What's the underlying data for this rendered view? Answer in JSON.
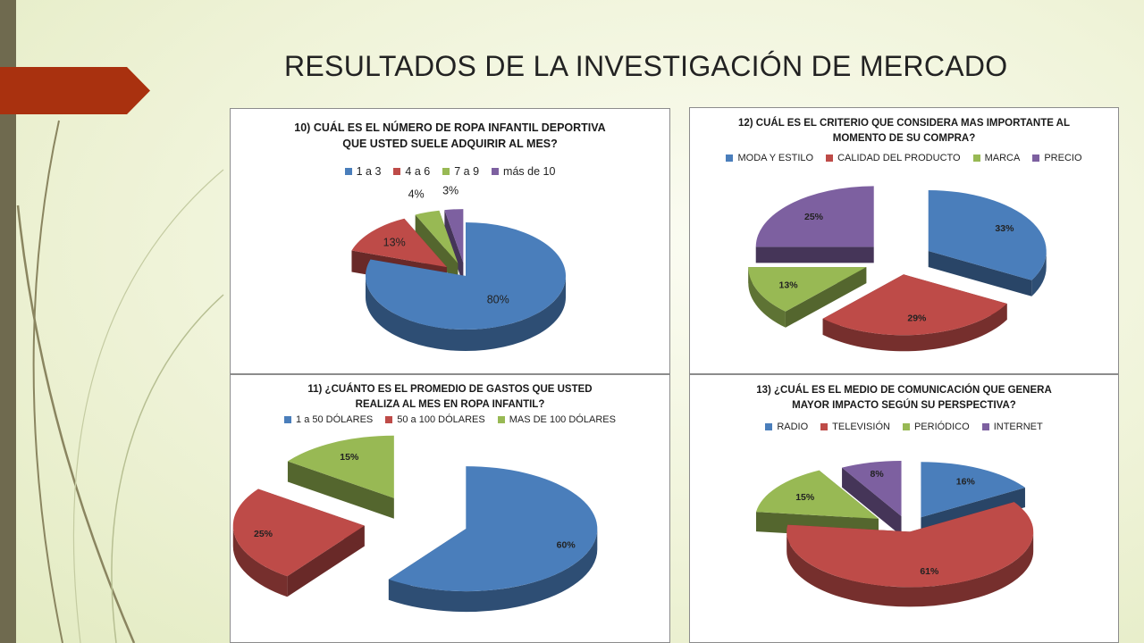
{
  "slide": {
    "title": "RESULTADOS DE LA INVESTIGACIÓN DE MERCADO"
  },
  "colors": {
    "blue": "#4a7ebb",
    "red": "#be4b48",
    "green": "#98b954",
    "purple": "#7d60a0",
    "accent": "#a9310f",
    "sidebar": "#6f6a4f"
  },
  "chart_data": [
    {
      "id": "c10",
      "type": "pie",
      "style": "3d-exploded",
      "title": "10) CUÁL ES EL NÚMERO DE ROPA INFANTIL DEPORTIVA QUE USTED SUELE ADQUIRIR AL MES?",
      "title_lines": [
        "10) CUÁL ES EL NÚMERO DE ROPA INFANTIL DEPORTIVA",
        "QUE USTED SUELE ADQUIRIR AL MES?"
      ],
      "legend": "top",
      "categories": [
        "1 a 3",
        "4 a 6",
        "7 a 9",
        "más de 10"
      ],
      "values": [
        80,
        13,
        4,
        3
      ],
      "labels": [
        "80%",
        "13%",
        "4%",
        "3%"
      ],
      "colors": [
        "#4a7ebb",
        "#be4b48",
        "#98b954",
        "#7d60a0"
      ]
    },
    {
      "id": "c11",
      "type": "pie",
      "style": "3d-exploded",
      "title": "11) ¿CUÁNTO ES EL PROMEDIO DE GASTOS QUE USTED REALIZA AL MES EN ROPA INFANTIL?",
      "title_lines": [
        "11) ¿CUÁNTO ES EL PROMEDIO DE GASTOS QUE USTED",
        "REALIZA AL MES EN ROPA INFANTIL?"
      ],
      "legend": "top",
      "categories": [
        "1 a 50 DÓLARES",
        "50 a 100 DÓLARES",
        "MAS DE 100 DÓLARES"
      ],
      "values": [
        60,
        25,
        15
      ],
      "labels": [
        "60%",
        "25%",
        "15%"
      ],
      "colors": [
        "#4a7ebb",
        "#be4b48",
        "#98b954"
      ]
    },
    {
      "id": "c12",
      "type": "pie",
      "style": "3d-exploded",
      "title": "12) CUÁL ES EL CRITERIO QUE CONSIDERA MAS IMPORTANTE AL MOMENTO DE SU COMPRA?",
      "title_lines": [
        "12) CUÁL ES EL CRITERIO QUE CONSIDERA MAS IMPORTANTE AL",
        "MOMENTO DE SU COMPRA?"
      ],
      "legend": "top",
      "categories": [
        "MODA Y ESTILO",
        "CALIDAD DEL PRODUCTO",
        "MARCA",
        "PRECIO"
      ],
      "values": [
        33,
        29,
        13,
        25
      ],
      "labels": [
        "33%",
        "29%",
        "13%",
        "25%"
      ],
      "colors": [
        "#4a7ebb",
        "#be4b48",
        "#98b954",
        "#7d60a0"
      ]
    },
    {
      "id": "c13",
      "type": "pie",
      "style": "3d-exploded",
      "title": "13) ¿CUÁL ES EL MEDIO DE COMUNICACIÓN QUE GENERA MAYOR IMPACTO SEGÚN SU PERSPECTIVA?",
      "title_lines": [
        "13) ¿CUÁL ES EL MEDIO DE COMUNICACIÓN QUE GENERA",
        "MAYOR IMPACTO SEGÚN SU PERSPECTIVA?"
      ],
      "legend": "top",
      "categories": [
        "RADIO",
        "TELEVISIÓN",
        "PERIÓDICO",
        "INTERNET"
      ],
      "values": [
        16,
        61,
        15,
        8
      ],
      "labels": [
        "16%",
        "61%",
        "15%",
        "8%"
      ],
      "colors": [
        "#4a7ebb",
        "#be4b48",
        "#98b954",
        "#7d60a0"
      ]
    }
  ]
}
